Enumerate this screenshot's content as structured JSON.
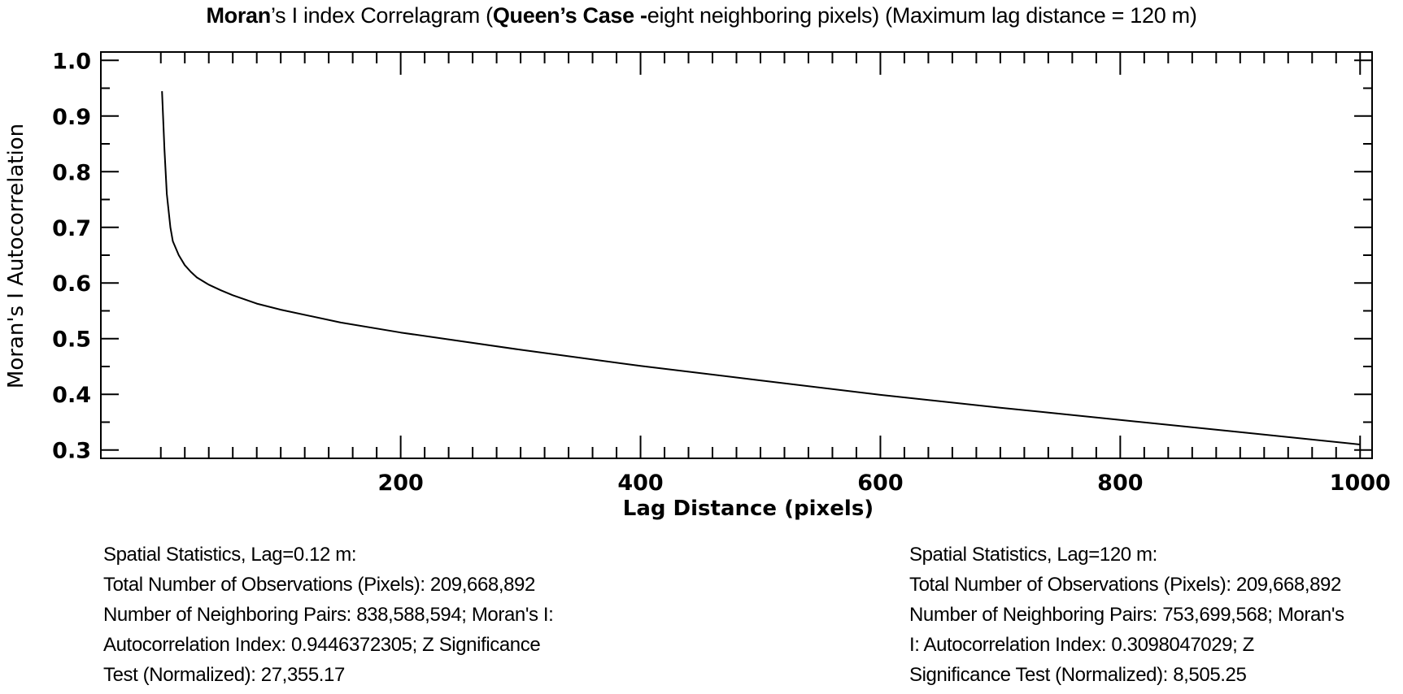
{
  "title": {
    "part1_bold": "Moran",
    "part2": "’s I index Correlagram (",
    "part3_bold": "Queen’s Case",
    "part4_bold": " -",
    "part5": "eight neighboring pixels) (Maximum lag distance = 120 m)"
  },
  "chart_data": {
    "type": "line",
    "title": "Moran’s I index Correlagram (Queen’s Case -eight neighboring pixels) (Maximum lag distance = 120 m)",
    "xlabel": "Lag Distance (pixels)",
    "ylabel": "Moran's I Autocorrelation",
    "xlim": [
      -50,
      1010
    ],
    "ylim": [
      0.285,
      1.015
    ],
    "x_ticks": [
      200,
      400,
      600,
      800,
      1000
    ],
    "x_tick_labels": [
      "200",
      "400",
      "600",
      "800",
      "1000"
    ],
    "y_ticks": [
      0.3,
      0.4,
      0.5,
      0.6,
      0.7,
      0.8,
      0.9,
      1.0
    ],
    "y_tick_labels": [
      "0.3",
      "0.4",
      "0.5",
      "0.6",
      "0.7",
      "0.8",
      "0.9",
      "1.0"
    ],
    "grid": false,
    "series": [
      {
        "name": "Moran's I",
        "color": "#000000",
        "x": [
          1,
          3,
          5,
          8,
          10,
          15,
          20,
          25,
          30,
          40,
          50,
          60,
          80,
          100,
          150,
          200,
          300,
          400,
          500,
          600,
          700,
          800,
          900,
          1000
        ],
        "y": [
          0.9446,
          0.84,
          0.76,
          0.7,
          0.675,
          0.65,
          0.632,
          0.62,
          0.61,
          0.597,
          0.587,
          0.578,
          0.563,
          0.552,
          0.529,
          0.511,
          0.48,
          0.451,
          0.425,
          0.399,
          0.376,
          0.354,
          0.332,
          0.3098
        ]
      }
    ]
  },
  "stats_left": {
    "line1": "Spatial Statistics, Lag=0.12 m:",
    "line2": "Total Number of Observations (Pixels): 209,668,892",
    "line3": "Number of Neighboring Pairs: 838,588,594;  Moran's I:",
    "line4": "Autocorrelation Index: 0.9446372305;  Z Significance",
    "line5": "Test (Normalized): 27,355.17"
  },
  "stats_right": {
    "line1": "Spatial Statistics, Lag=120 m:",
    "line2": "Total Number of Observations (Pixels): 209,668,892",
    "line3": "Number of Neighboring Pairs: 753,699,568; Moran's",
    "line4": "I: Autocorrelation Index: 0.3098047029;   Z",
    "line5": "Significance Test (Normalized): 8,505.25"
  }
}
